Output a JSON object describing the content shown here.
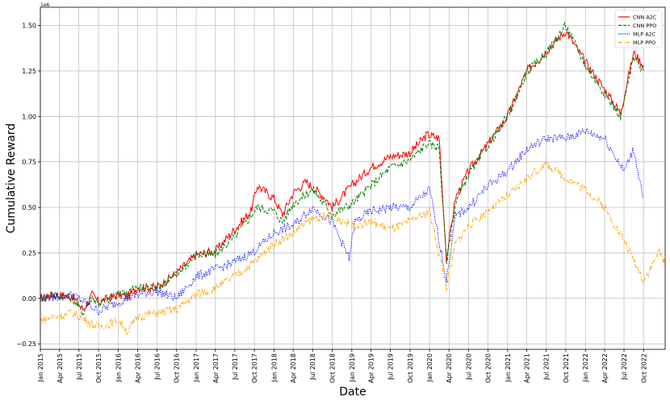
{
  "chart_data": {
    "type": "line",
    "xlabel": "Date",
    "ylabel": "Cumulative Reward",
    "y_exponent_label": "1e6",
    "ylim": [
      -0.28,
      1.6
    ],
    "xlim": [
      "2015-01-01",
      "2023-01-10"
    ],
    "y_ticks": [
      -0.25,
      0.0,
      0.25,
      0.5,
      0.75,
      1.0,
      1.25,
      1.5
    ],
    "y_tick_labels": [
      "−0.25",
      "0.00",
      "0.25",
      "0.50",
      "0.75",
      "1.00",
      "1.25",
      "1.50"
    ],
    "x_tick_dates": [
      "2015-01-01",
      "2015-04-01",
      "2015-07-01",
      "2015-10-01",
      "2016-01-01",
      "2016-04-01",
      "2016-07-01",
      "2016-10-01",
      "2017-01-01",
      "2017-04-01",
      "2017-07-01",
      "2017-10-01",
      "2018-01-01",
      "2018-04-01",
      "2018-07-01",
      "2018-10-01",
      "2019-01-01",
      "2019-04-01",
      "2019-07-01",
      "2019-10-01",
      "2020-01-01",
      "2020-04-01",
      "2020-07-01",
      "2020-10-01",
      "2021-01-01",
      "2021-04-01",
      "2021-07-01",
      "2021-10-01",
      "2022-01-01",
      "2022-04-01",
      "2022-07-01",
      "2022-10-01"
    ],
    "x_tick_labels": [
      "Jan 2015",
      "Apr 2015",
      "Jul 2015",
      "Oct 2015",
      "Jan 2016",
      "Apr 2016",
      "Jul 2016",
      "Oct 2016",
      "Jan 2017",
      "Apr 2017",
      "Jul 2017",
      "Oct 2017",
      "Jan 2018",
      "Apr 2018",
      "Jul 2018",
      "Oct 2018",
      "Jan 2019",
      "Apr 2019",
      "Jul 2019",
      "Oct 2019",
      "Jan 2020",
      "Apr 2020",
      "Jul 2020",
      "Oct 2020",
      "Jan 2021",
      "Apr 2021",
      "Jul 2021",
      "Oct 2021",
      "Jan 2022",
      "Apr 2022",
      "Jul 2022",
      "Oct 2022"
    ],
    "grid": true,
    "legend": "top-right",
    "series": [
      {
        "name": "CNN A2C",
        "color": "#ff0000",
        "style": "solid",
        "points": [
          [
            "2015-01-01",
            0.0
          ],
          [
            "2015-03-01",
            0.02
          ],
          [
            "2015-06-01",
            0.01
          ],
          [
            "2015-07-20",
            -0.06
          ],
          [
            "2015-09-01",
            0.02
          ],
          [
            "2015-10-01",
            -0.02
          ],
          [
            "2016-01-01",
            0.02
          ],
          [
            "2016-02-15",
            0.01
          ],
          [
            "2016-04-01",
            0.06
          ],
          [
            "2016-07-01",
            0.06
          ],
          [
            "2016-10-01",
            0.14
          ],
          [
            "2017-01-01",
            0.24
          ],
          [
            "2017-04-01",
            0.26
          ],
          [
            "2017-07-01",
            0.38
          ],
          [
            "2017-09-15",
            0.48
          ],
          [
            "2017-10-15",
            0.62
          ],
          [
            "2018-01-01",
            0.55
          ],
          [
            "2018-02-10",
            0.46
          ],
          [
            "2018-04-01",
            0.58
          ],
          [
            "2018-06-01",
            0.64
          ],
          [
            "2018-09-01",
            0.55
          ],
          [
            "2018-10-01",
            0.5
          ],
          [
            "2019-01-01",
            0.62
          ],
          [
            "2019-04-01",
            0.72
          ],
          [
            "2019-07-01",
            0.78
          ],
          [
            "2019-10-01",
            0.8
          ],
          [
            "2019-12-20",
            0.9
          ],
          [
            "2020-02-15",
            0.88
          ],
          [
            "2020-03-20",
            0.22
          ],
          [
            "2020-05-01",
            0.55
          ],
          [
            "2020-07-01",
            0.7
          ],
          [
            "2020-10-01",
            0.85
          ],
          [
            "2021-01-01",
            1.0
          ],
          [
            "2021-04-01",
            1.25
          ],
          [
            "2021-07-01",
            1.36
          ],
          [
            "2021-10-01",
            1.47
          ],
          [
            "2022-01-01",
            1.3
          ],
          [
            "2022-03-01",
            1.2
          ],
          [
            "2022-06-15",
            1.02
          ],
          [
            "2022-08-15",
            1.35
          ],
          [
            "2022-10-01",
            1.28
          ]
        ]
      },
      {
        "name": "CNN PPO",
        "color": "#008000",
        "style": "dashed",
        "points": [
          [
            "2015-01-01",
            0.0
          ],
          [
            "2015-03-01",
            0.02
          ],
          [
            "2015-06-01",
            0.0
          ],
          [
            "2015-07-20",
            -0.08
          ],
          [
            "2015-09-01",
            0.01
          ],
          [
            "2015-10-01",
            -0.03
          ],
          [
            "2016-01-01",
            0.02
          ],
          [
            "2016-04-01",
            0.06
          ],
          [
            "2016-07-01",
            0.06
          ],
          [
            "2016-10-01",
            0.13
          ],
          [
            "2017-01-01",
            0.24
          ],
          [
            "2017-04-01",
            0.24
          ],
          [
            "2017-07-01",
            0.34
          ],
          [
            "2017-10-15",
            0.5
          ],
          [
            "2018-01-01",
            0.48
          ],
          [
            "2018-02-10",
            0.42
          ],
          [
            "2018-04-01",
            0.52
          ],
          [
            "2018-07-01",
            0.6
          ],
          [
            "2018-10-01",
            0.46
          ],
          [
            "2019-01-01",
            0.52
          ],
          [
            "2019-04-01",
            0.62
          ],
          [
            "2019-07-01",
            0.72
          ],
          [
            "2019-10-01",
            0.76
          ],
          [
            "2019-12-20",
            0.85
          ],
          [
            "2020-02-15",
            0.83
          ],
          [
            "2020-03-20",
            0.2
          ],
          [
            "2020-05-01",
            0.52
          ],
          [
            "2020-07-01",
            0.68
          ],
          [
            "2020-10-01",
            0.84
          ],
          [
            "2021-01-01",
            1.0
          ],
          [
            "2021-04-01",
            1.24
          ],
          [
            "2021-07-01",
            1.35
          ],
          [
            "2021-10-01",
            1.5
          ],
          [
            "2022-01-01",
            1.28
          ],
          [
            "2022-03-01",
            1.18
          ],
          [
            "2022-06-15",
            1.0
          ],
          [
            "2022-08-15",
            1.32
          ],
          [
            "2022-10-01",
            1.25
          ]
        ]
      },
      {
        "name": "MLP A2C",
        "color": "#0000ff",
        "style": "dotted",
        "points": [
          [
            "2015-01-01",
            0.0
          ],
          [
            "2015-06-01",
            0.02
          ],
          [
            "2015-10-01",
            -0.07
          ],
          [
            "2016-01-01",
            -0.02
          ],
          [
            "2016-04-01",
            0.02
          ],
          [
            "2016-07-01",
            0.04
          ],
          [
            "2016-10-01",
            0.0
          ],
          [
            "2017-01-01",
            0.12
          ],
          [
            "2017-07-01",
            0.2
          ],
          [
            "2017-10-01",
            0.26
          ],
          [
            "2018-01-01",
            0.36
          ],
          [
            "2018-04-01",
            0.4
          ],
          [
            "2018-07-01",
            0.5
          ],
          [
            "2018-10-01",
            0.42
          ],
          [
            "2018-12-20",
            0.22
          ],
          [
            "2019-01-15",
            0.42
          ],
          [
            "2019-04-01",
            0.48
          ],
          [
            "2019-07-01",
            0.5
          ],
          [
            "2019-10-01",
            0.5
          ],
          [
            "2020-01-01",
            0.6
          ],
          [
            "2020-03-20",
            0.1
          ],
          [
            "2020-05-01",
            0.45
          ],
          [
            "2020-07-01",
            0.5
          ],
          [
            "2020-10-01",
            0.62
          ],
          [
            "2021-01-01",
            0.7
          ],
          [
            "2021-04-01",
            0.82
          ],
          [
            "2021-07-01",
            0.88
          ],
          [
            "2021-10-01",
            0.88
          ],
          [
            "2022-01-01",
            0.92
          ],
          [
            "2022-04-01",
            0.88
          ],
          [
            "2022-07-01",
            0.7
          ],
          [
            "2022-08-15",
            0.82
          ],
          [
            "2022-10-01",
            0.55
          ]
        ]
      },
      {
        "name": "MLP PPO",
        "color": "#ffa500",
        "style": "dashdot",
        "points": [
          [
            "2015-01-01",
            -0.12
          ],
          [
            "2015-06-01",
            -0.08
          ],
          [
            "2015-10-01",
            -0.16
          ],
          [
            "2016-01-01",
            -0.12
          ],
          [
            "2016-02-15",
            -0.18
          ],
          [
            "2016-04-01",
            -0.1
          ],
          [
            "2016-07-01",
            -0.08
          ],
          [
            "2016-10-01",
            -0.06
          ],
          [
            "2017-01-01",
            0.02
          ],
          [
            "2017-04-01",
            0.06
          ],
          [
            "2017-07-01",
            0.12
          ],
          [
            "2017-10-01",
            0.2
          ],
          [
            "2018-01-01",
            0.3
          ],
          [
            "2018-04-01",
            0.36
          ],
          [
            "2018-07-01",
            0.44
          ],
          [
            "2018-10-01",
            0.46
          ],
          [
            "2019-01-01",
            0.4
          ],
          [
            "2019-04-01",
            0.42
          ],
          [
            "2019-07-01",
            0.38
          ],
          [
            "2019-10-01",
            0.42
          ],
          [
            "2020-01-01",
            0.48
          ],
          [
            "2020-03-20",
            0.06
          ],
          [
            "2020-05-01",
            0.3
          ],
          [
            "2020-07-01",
            0.4
          ],
          [
            "2020-10-01",
            0.48
          ],
          [
            "2021-01-01",
            0.56
          ],
          [
            "2021-04-01",
            0.66
          ],
          [
            "2021-07-01",
            0.74
          ],
          [
            "2021-10-01",
            0.66
          ],
          [
            "2022-01-01",
            0.6
          ],
          [
            "2022-04-01",
            0.5
          ],
          [
            "2022-07-01",
            0.32
          ],
          [
            "2022-10-01",
            0.1
          ],
          [
            "2022-12-15",
            0.26
          ],
          [
            "2023-01-10",
            0.18
          ]
        ]
      }
    ]
  }
}
